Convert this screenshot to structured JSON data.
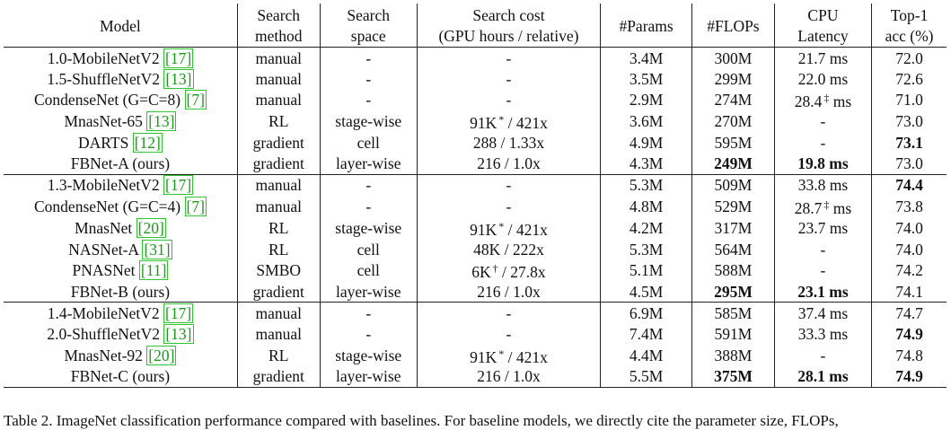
{
  "headers": {
    "model": "Model",
    "search_method": [
      "Search",
      "method"
    ],
    "search_space": [
      "Search",
      "space"
    ],
    "search_cost": [
      "Search cost",
      "(GPU hours / relative)"
    ],
    "params": "#Params",
    "flops": "#FLOPs",
    "cpu_latency": [
      "CPU",
      "Latency"
    ],
    "top1": [
      "Top-1",
      "acc (%)"
    ]
  },
  "rows": [
    {
      "model": "1.0-MobileNetV2 ",
      "ref": "[17]",
      "method": "manual",
      "space": "-",
      "cost": "-",
      "cost_sup": "",
      "cost_rest": "",
      "params": "3.4M",
      "flops": "300M",
      "flops_bold": false,
      "latency": "21.7 ms",
      "lat_sup": "",
      "lat_rest": "",
      "latency_bold": false,
      "acc": "72.0",
      "acc_bold": false
    },
    {
      "model": "1.5-ShuffleNetV2 ",
      "ref": "[13]",
      "method": "manual",
      "space": "-",
      "cost": "-",
      "cost_sup": "",
      "cost_rest": "",
      "params": "3.5M",
      "flops": "299M",
      "flops_bold": false,
      "latency": "22.0 ms",
      "lat_sup": "",
      "lat_rest": "",
      "latency_bold": false,
      "acc": "72.6",
      "acc_bold": false
    },
    {
      "model": "CondenseNet (G=C=8) ",
      "ref": "[7]",
      "method": "manual",
      "space": "-",
      "cost": "-",
      "cost_sup": "",
      "cost_rest": "",
      "params": "2.9M",
      "flops": "274M",
      "flops_bold": false,
      "latency": "28.4",
      "lat_sup": "‡",
      "lat_rest": " ms",
      "latency_bold": false,
      "acc": "71.0",
      "acc_bold": false
    },
    {
      "model": "MnasNet-65 ",
      "ref": "[13]",
      "method": "RL",
      "space": "stage-wise",
      "cost": "91K",
      "cost_sup": "*",
      "cost_rest": " / 421x",
      "params": "3.6M",
      "flops": "270M",
      "flops_bold": false,
      "latency": "-",
      "lat_sup": "",
      "lat_rest": "",
      "latency_bold": false,
      "acc": "73.0",
      "acc_bold": false
    },
    {
      "model": "DARTS ",
      "ref": "[12]",
      "method": "gradient",
      "space": "cell",
      "cost": "288 / 1.33x",
      "cost_sup": "",
      "cost_rest": "",
      "params": "4.9M",
      "flops": "595M",
      "flops_bold": false,
      "latency": "-",
      "lat_sup": "",
      "lat_rest": "",
      "latency_bold": false,
      "acc": "73.1",
      "acc_bold": true
    },
    {
      "model": "FBNet-A (ours)",
      "ref": "",
      "method": "gradient",
      "space": "layer-wise",
      "cost": "216 / 1.0x",
      "cost_sup": "",
      "cost_rest": "",
      "params": "4.3M",
      "flops": "249M",
      "flops_bold": true,
      "latency": "19.8 ms",
      "lat_sup": "",
      "lat_rest": "",
      "latency_bold": true,
      "acc": "73.0",
      "acc_bold": false
    },
    {
      "model": "1.3-MobileNetV2 ",
      "ref": "[17]",
      "method": "manual",
      "space": "-",
      "cost": "-",
      "cost_sup": "",
      "cost_rest": "",
      "params": "5.3M",
      "flops": "509M",
      "flops_bold": false,
      "latency": "33.8 ms",
      "lat_sup": "",
      "lat_rest": "",
      "latency_bold": false,
      "acc": "74.4",
      "acc_bold": true
    },
    {
      "model": "CondenseNet (G=C=4) ",
      "ref": "[7]",
      "method": "manual",
      "space": "-",
      "cost": "-",
      "cost_sup": "",
      "cost_rest": "",
      "params": "4.8M",
      "flops": "529M",
      "flops_bold": false,
      "latency": "28.7",
      "lat_sup": "‡",
      "lat_rest": " ms",
      "latency_bold": false,
      "acc": "73.8",
      "acc_bold": false
    },
    {
      "model": "MnasNet ",
      "ref": "[20]",
      "method": "RL",
      "space": "stage-wise",
      "cost": "91K",
      "cost_sup": "*",
      "cost_rest": " / 421x",
      "params": "4.2M",
      "flops": "317M",
      "flops_bold": false,
      "latency": "23.7 ms",
      "lat_sup": "",
      "lat_rest": "",
      "latency_bold": false,
      "acc": "74.0",
      "acc_bold": false
    },
    {
      "model": "NASNet-A ",
      "ref": "[31]",
      "method": "RL",
      "space": "cell",
      "cost": "48K / 222x",
      "cost_sup": "",
      "cost_rest": "",
      "params": "5.3M",
      "flops": "564M",
      "flops_bold": false,
      "latency": "-",
      "lat_sup": "",
      "lat_rest": "",
      "latency_bold": false,
      "acc": "74.0",
      "acc_bold": false
    },
    {
      "model": "PNASNet ",
      "ref": "[11]",
      "method": "SMBO",
      "space": "cell",
      "cost": "6K",
      "cost_sup": "†",
      "cost_rest": " / 27.8x",
      "params": "5.1M",
      "flops": "588M",
      "flops_bold": false,
      "latency": "-",
      "lat_sup": "",
      "lat_rest": "",
      "latency_bold": false,
      "acc": "74.2",
      "acc_bold": false
    },
    {
      "model": "FBNet-B (ours)",
      "ref": "",
      "method": "gradient",
      "space": "layer-wise",
      "cost": "216 / 1.0x",
      "cost_sup": "",
      "cost_rest": "",
      "params": "4.5M",
      "flops": "295M",
      "flops_bold": true,
      "latency": "23.1 ms",
      "lat_sup": "",
      "lat_rest": "",
      "latency_bold": true,
      "acc": "74.1",
      "acc_bold": false
    },
    {
      "model": "1.4-MobileNetV2 ",
      "ref": "[17]",
      "method": "manual",
      "space": "-",
      "cost": "-",
      "cost_sup": "",
      "cost_rest": "",
      "params": "6.9M",
      "flops": "585M",
      "flops_bold": false,
      "latency": "37.4 ms",
      "lat_sup": "",
      "lat_rest": "",
      "latency_bold": false,
      "acc": "74.7",
      "acc_bold": false
    },
    {
      "model": "2.0-ShuffleNetV2 ",
      "ref": "[13]",
      "method": "manual",
      "space": "-",
      "cost": "-",
      "cost_sup": "",
      "cost_rest": "",
      "params": "7.4M",
      "flops": "591M",
      "flops_bold": false,
      "latency": "33.3 ms",
      "lat_sup": "",
      "lat_rest": "",
      "latency_bold": false,
      "acc": "74.9",
      "acc_bold": true
    },
    {
      "model": "MnasNet-92 ",
      "ref": "[20]",
      "method": "RL",
      "space": "stage-wise",
      "cost": "91K",
      "cost_sup": "*",
      "cost_rest": " / 421x",
      "params": "4.4M",
      "flops": "388M",
      "flops_bold": false,
      "latency": "-",
      "lat_sup": "",
      "lat_rest": "",
      "latency_bold": false,
      "acc": "74.8",
      "acc_bold": false
    },
    {
      "model": "FBNet-C (ours)",
      "ref": "",
      "method": "gradient",
      "space": "layer-wise",
      "cost": "216 / 1.0x",
      "cost_sup": "",
      "cost_rest": "",
      "params": "5.5M",
      "flops": "375M",
      "flops_bold": true,
      "latency": "28.1 ms",
      "lat_sup": "",
      "lat_rest": "",
      "latency_bold": true,
      "acc": "74.9",
      "acc_bold": true
    }
  ],
  "caption": "Table 2. ImageNet classification performance compared with baselines. For baseline models, we directly cite the parameter size, FLOPs,"
}
